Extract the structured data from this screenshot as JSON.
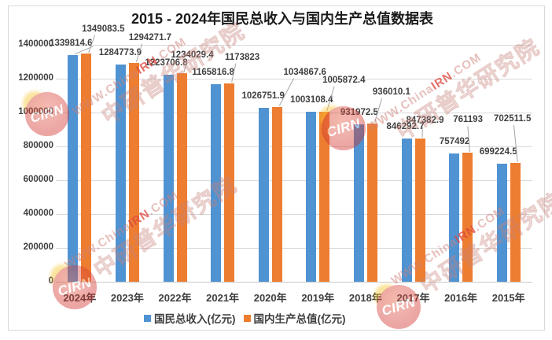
{
  "title": "2015 - 2024年国民总收入与国内生产总值数据表",
  "chart_data": {
    "type": "bar",
    "categories": [
      "2024年",
      "2023年",
      "2022年",
      "2021年",
      "2020年",
      "2019年",
      "2018年",
      "2017年",
      "2016年",
      "2015年"
    ],
    "series": [
      {
        "name": "国民总收入(亿元)",
        "color": "#5093D2",
        "values": [
          1339814.6,
          1284773.9,
          1223706.8,
          1165816.8,
          1026751.9,
          1003108.4,
          931972.5,
          846292.7,
          757492,
          699224.5
        ]
      },
      {
        "name": "国内生产总值(亿元)",
        "color": "#ED7D31",
        "values": [
          1349083.5,
          1294271.7,
          1234029.4,
          1173823,
          1034867.6,
          1005872.4,
          936010.1,
          847382.9,
          761193,
          702511.5
        ]
      }
    ],
    "ylim": [
      0,
      1400000
    ],
    "ytick_step": 200000,
    "yticks": [
      "1400000",
      "1200000",
      "1000000",
      "800000",
      "600000",
      "400000",
      "200000",
      "0"
    ],
    "grid": "horizontal",
    "legend_position": "bottom",
    "data_labels": true
  },
  "watermark": {
    "url_text": "WWW.ChinaIRN.COM",
    "url_prefix": "WWW.China",
    "url_mid": "IRN",
    "url_suffix": ".COM",
    "cn_text": "中研普华研究院",
    "seal_text": "CIRN",
    "color": "#D64541"
  }
}
